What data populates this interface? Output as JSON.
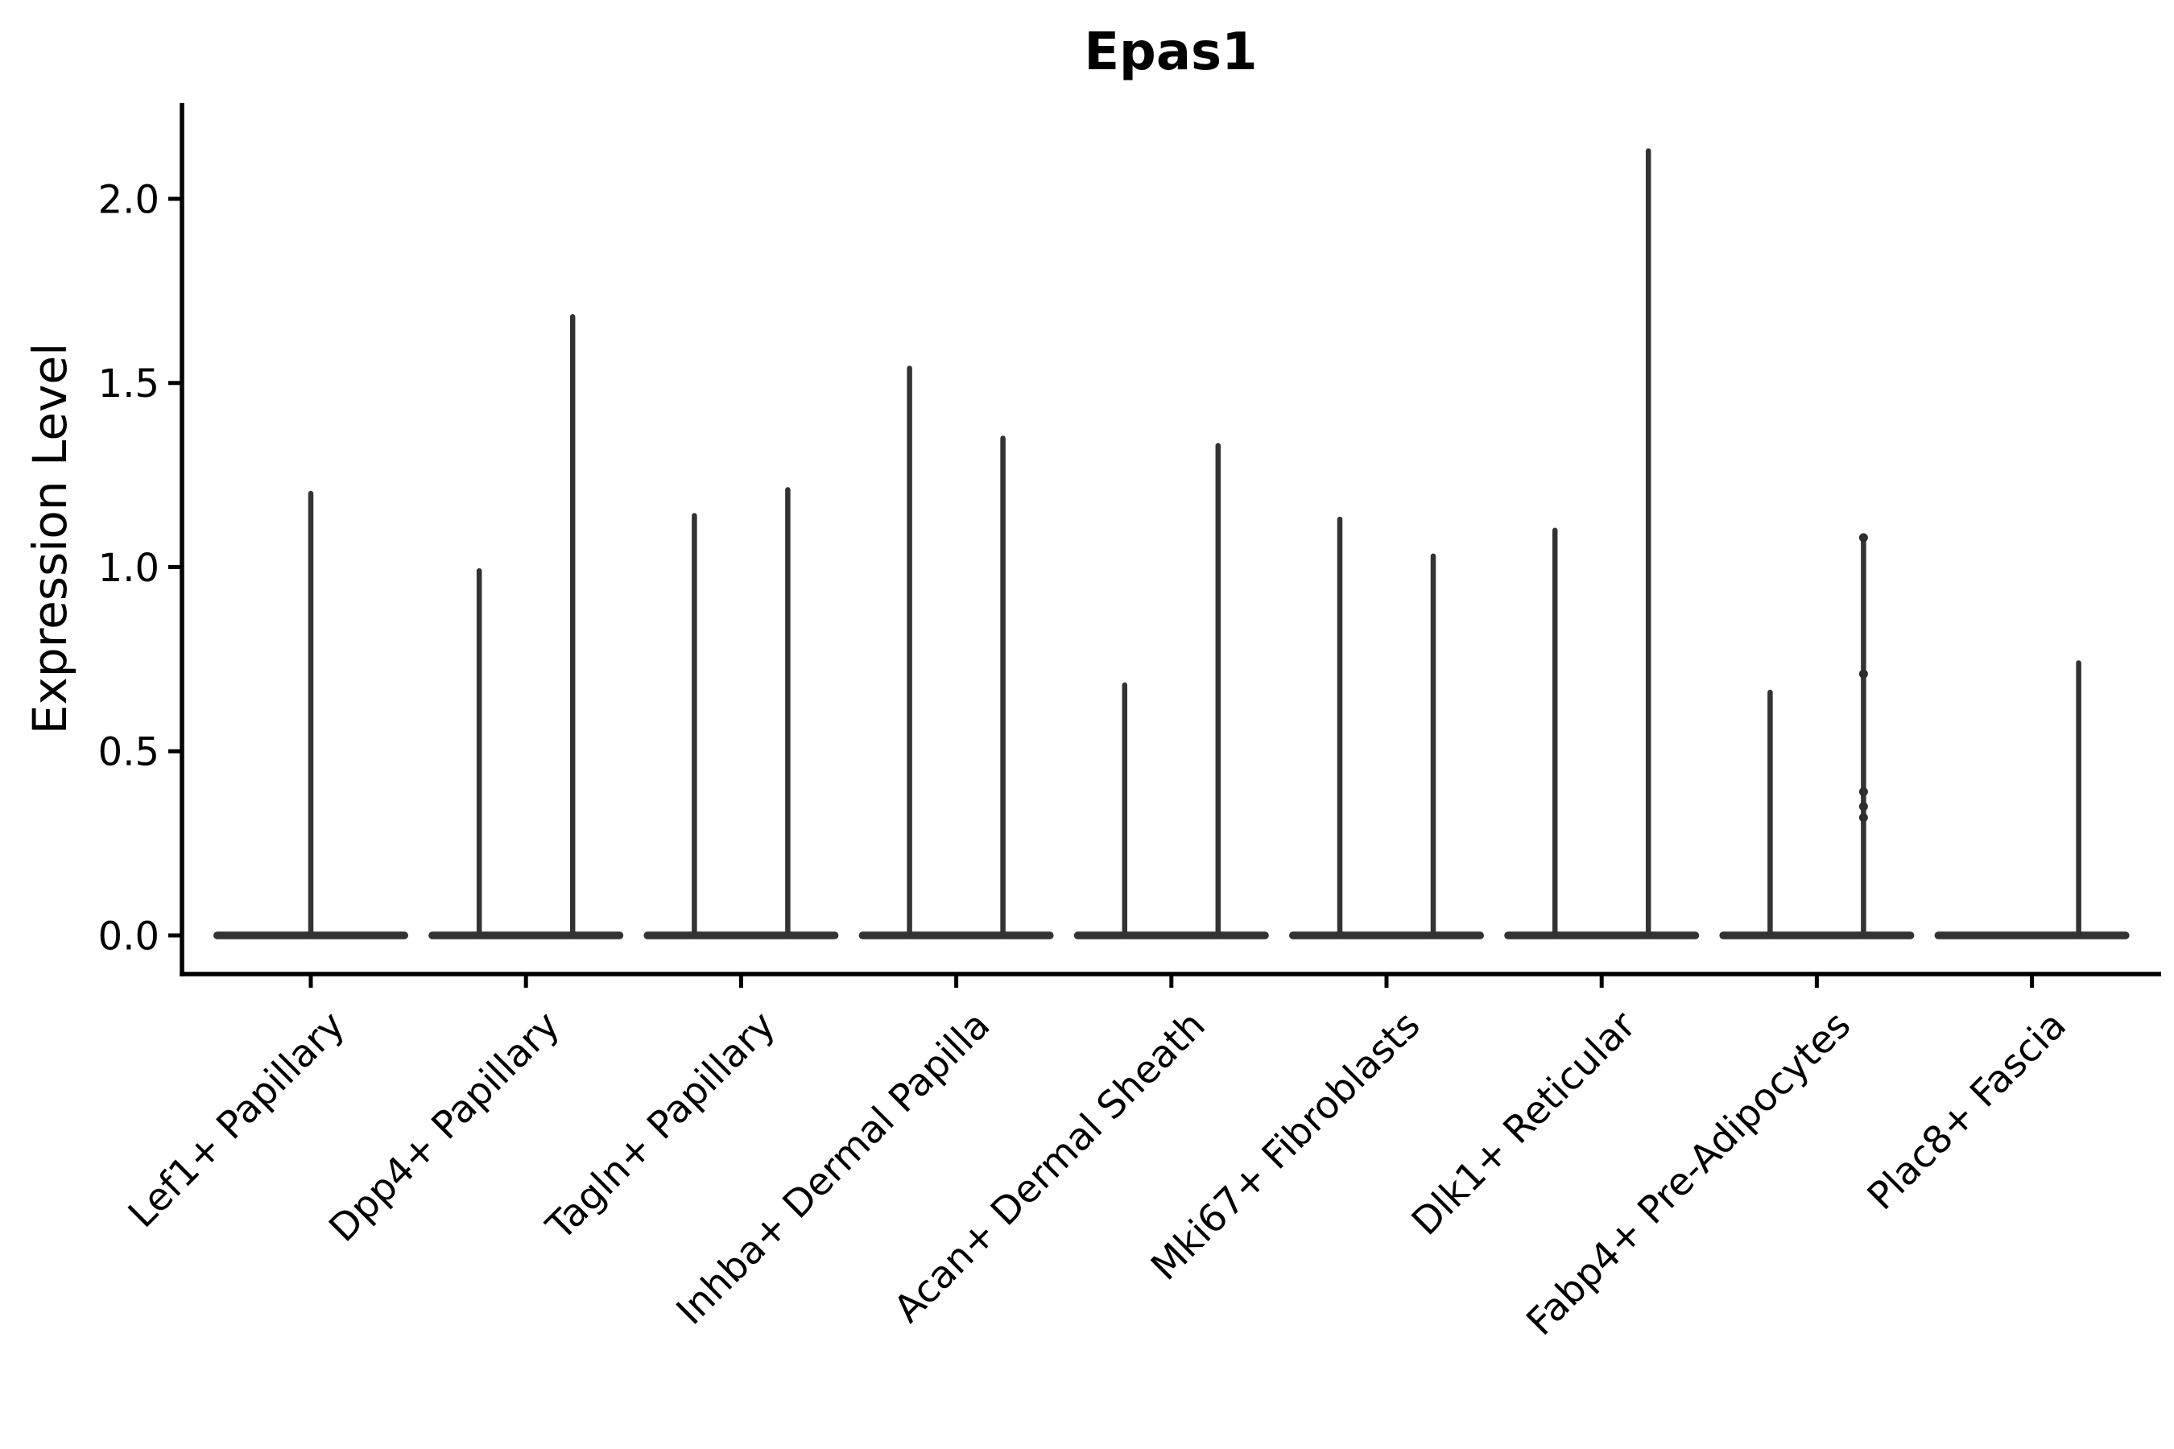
{
  "title": "Epas1",
  "chart_data": {
    "type": "violin",
    "title": "Epas1",
    "ylabel": "Expression Level",
    "xlabel": "",
    "ytick_labels": [
      "0.0",
      "0.5",
      "1.0",
      "1.5",
      "2.0"
    ],
    "ytick_values": [
      0.0,
      0.5,
      1.0,
      1.5,
      2.0
    ],
    "ylim": [
      -0.105,
      2.26
    ],
    "grid": false,
    "legend": "none",
    "categories": [
      "Lef1+ Papillary",
      "Dpp4+ Papillary",
      "Tagln+ Papillary",
      "Inhba+ Dermal Papilla",
      "Acan+ Dermal Sheath",
      "Mki67+ Fibroblasts",
      "Dlk1+ Reticular",
      "Fabp4+ Pre-Adipocytes",
      "Plac8+ Fascia"
    ],
    "violins": [
      {
        "category": "Lef1+ Papillary",
        "split": "full",
        "base_value": 0.0,
        "max": 1.2
      },
      {
        "category": "Dpp4+ Papillary",
        "split": "left",
        "base_value": 0.0,
        "max": 0.99
      },
      {
        "category": "Dpp4+ Papillary",
        "split": "right",
        "base_value": 0.0,
        "max": 1.68
      },
      {
        "category": "Tagln+ Papillary",
        "split": "left",
        "base_value": 0.0,
        "max": 1.14
      },
      {
        "category": "Tagln+ Papillary",
        "split": "right",
        "base_value": 0.0,
        "max": 1.21
      },
      {
        "category": "Inhba+ Dermal Papilla",
        "split": "left",
        "base_value": 0.0,
        "max": 1.54
      },
      {
        "category": "Inhba+ Dermal Papilla",
        "split": "right",
        "base_value": 0.0,
        "max": 1.35
      },
      {
        "category": "Acan+ Dermal Sheath",
        "split": "left",
        "base_value": 0.0,
        "max": 0.68
      },
      {
        "category": "Acan+ Dermal Sheath",
        "split": "right",
        "base_value": 0.0,
        "max": 1.33
      },
      {
        "category": "Mki67+ Fibroblasts",
        "split": "left",
        "base_value": 0.0,
        "max": 1.13
      },
      {
        "category": "Mki67+ Fibroblasts",
        "split": "right",
        "base_value": 0.0,
        "max": 1.03
      },
      {
        "category": "Dlk1+ Reticular",
        "split": "left",
        "base_value": 0.0,
        "max": 1.1
      },
      {
        "category": "Dlk1+ Reticular",
        "split": "right",
        "base_value": 0.0,
        "max": 2.13
      },
      {
        "category": "Fabp4+ Pre-Adipocytes",
        "split": "left",
        "base_value": 0.0,
        "max": 0.66
      },
      {
        "category": "Fabp4+ Pre-Adipocytes",
        "split": "right",
        "base_value": 0.0,
        "max": 1.08,
        "points": [
          1.08,
          0.71,
          0.39,
          0.35,
          0.32
        ]
      },
      {
        "category": "Plac8+ Fascia",
        "split": "right",
        "base_value": 0.0,
        "max": 0.74
      }
    ],
    "colors": {
      "violin": "#333333",
      "point": "#2e2e2e",
      "spine": "#000000",
      "text": "#000000"
    }
  }
}
